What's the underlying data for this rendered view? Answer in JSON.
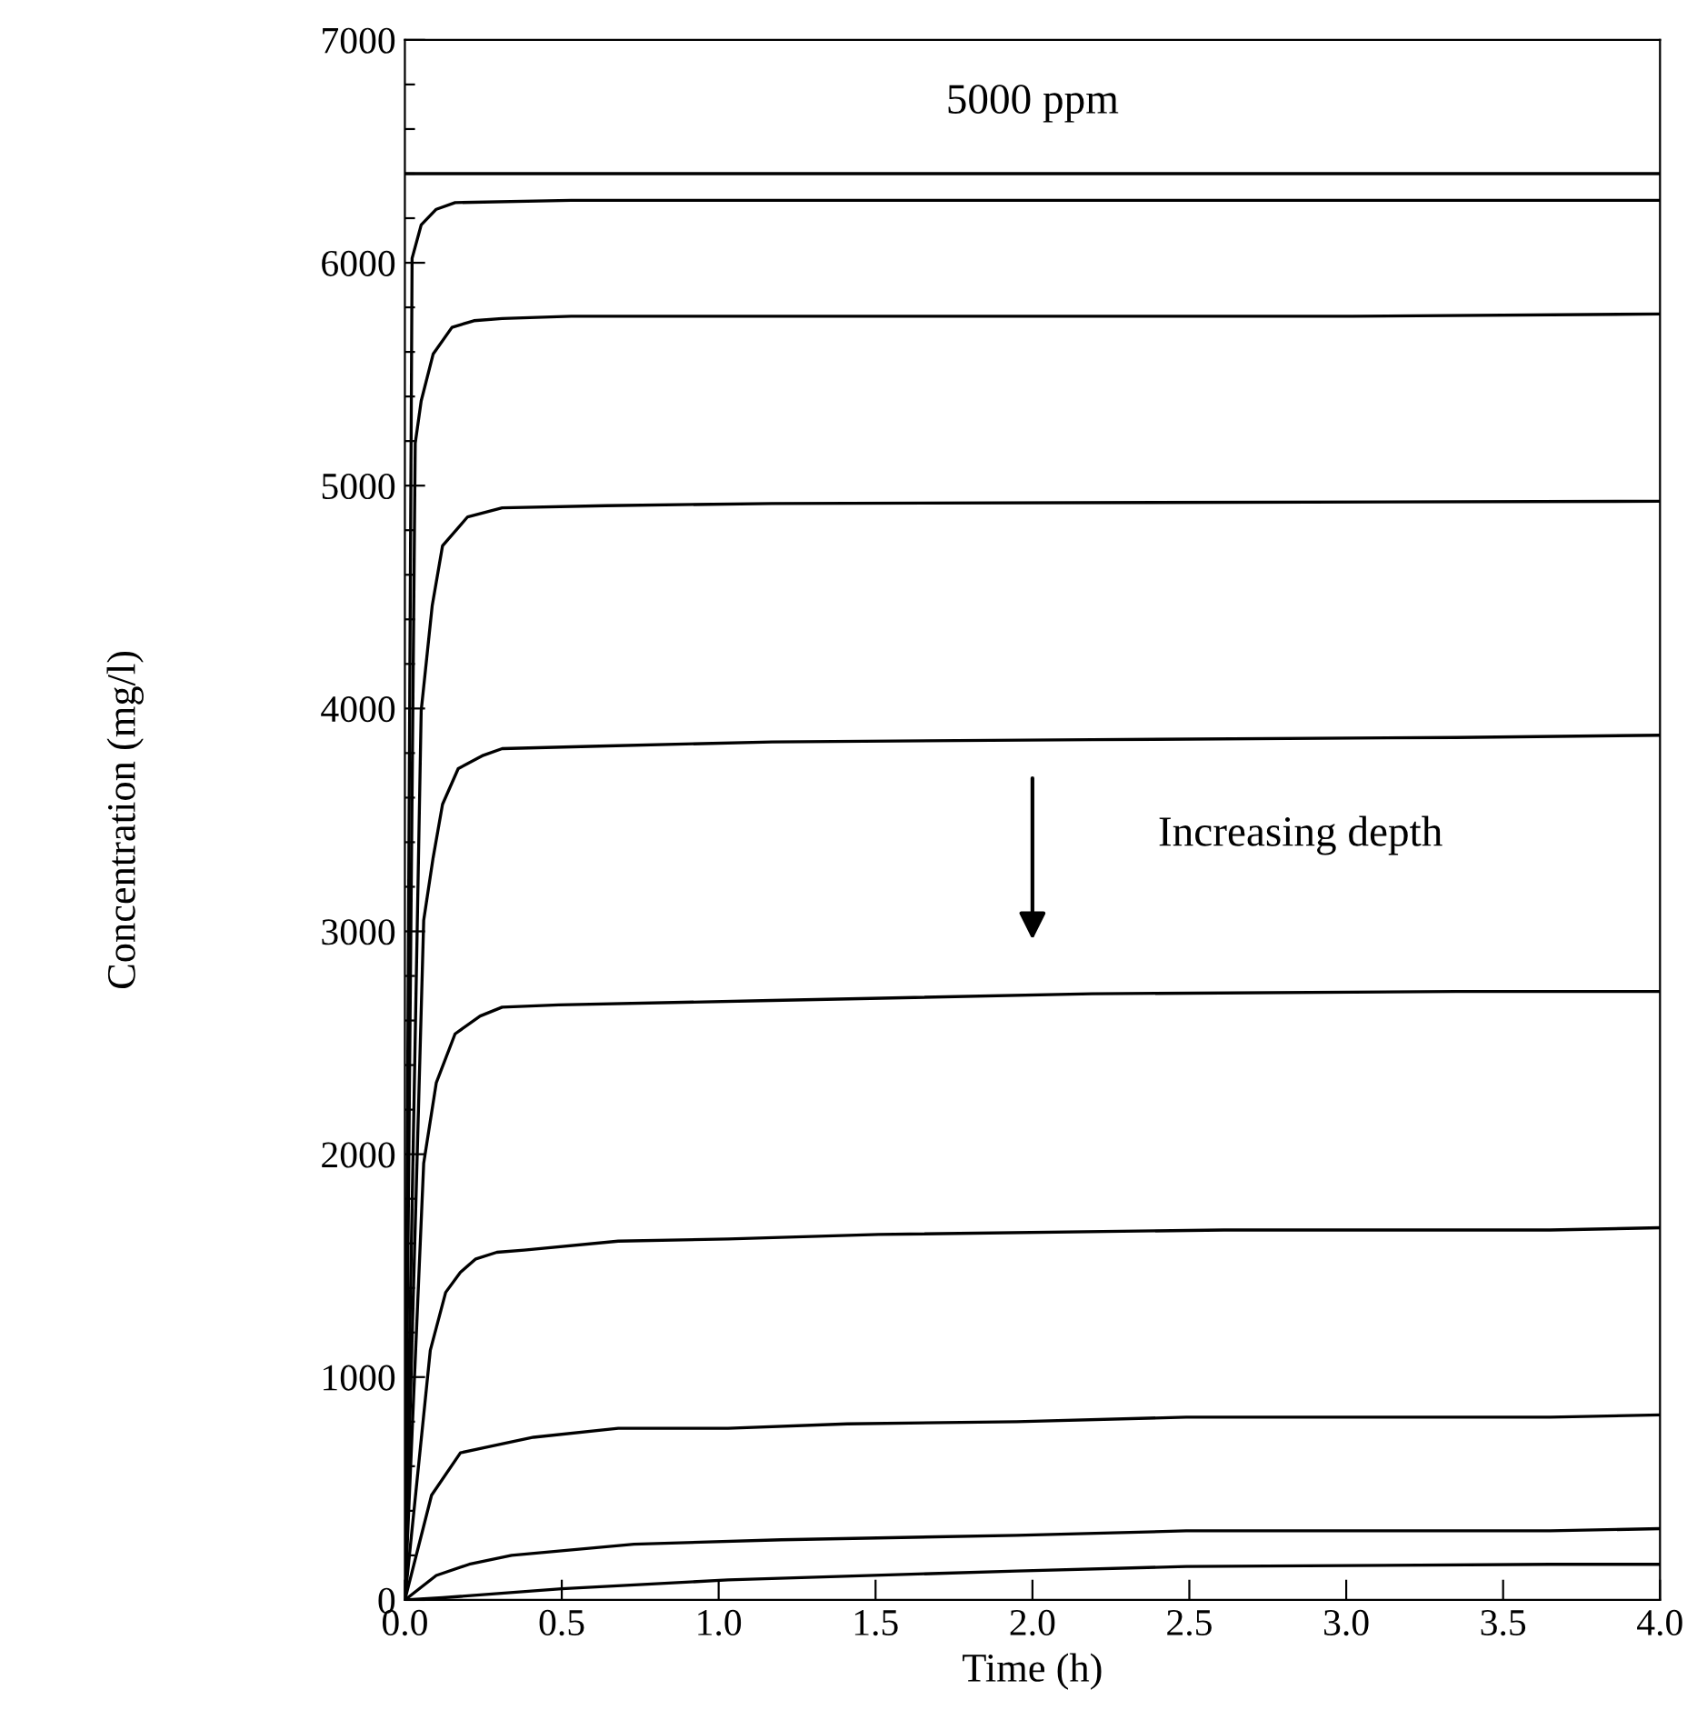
{
  "chart_data": {
    "type": "line",
    "xlabel": "Time (h)",
    "ylabel": "Concentration (mg/l)",
    "xlim": [
      0,
      4
    ],
    "ylim": [
      0,
      7000
    ],
    "xticks": [
      {
        "value": 0,
        "label": "0.0"
      },
      {
        "value": 0.5,
        "label": "0.5"
      },
      {
        "value": 1,
        "label": "1.0"
      },
      {
        "value": 1.5,
        "label": "1.5"
      },
      {
        "value": 2,
        "label": "2.0"
      },
      {
        "value": 2.5,
        "label": "2.5"
      },
      {
        "value": 3,
        "label": "3.0"
      },
      {
        "value": 3.5,
        "label": "3.5"
      },
      {
        "value": 4,
        "label": "4.0"
      }
    ],
    "yticks": [
      0,
      {
        "value": 200,
        "label": null
      },
      {
        "value": 400,
        "label": null
      },
      {
        "value": 600,
        "label": null
      },
      {
        "value": 800,
        "label": null
      },
      1000,
      {
        "value": 1200,
        "label": null
      },
      {
        "value": 1400,
        "label": null
      },
      {
        "value": 1600,
        "label": null
      },
      {
        "value": 1800,
        "label": null
      },
      2000,
      {
        "value": 2200,
        "label": null
      },
      {
        "value": 2400,
        "label": null
      },
      {
        "value": 2600,
        "label": null
      },
      {
        "value": 2800,
        "label": null
      },
      3000,
      {
        "value": 3200,
        "label": null
      },
      {
        "value": 3400,
        "label": null
      },
      {
        "value": 3600,
        "label": null
      },
      {
        "value": 3800,
        "label": null
      },
      4000,
      {
        "value": 4200,
        "label": null
      },
      {
        "value": 4400,
        "label": null
      },
      {
        "value": 4600,
        "label": null
      },
      {
        "value": 4800,
        "label": null
      },
      5000,
      {
        "value": 5200,
        "label": null
      },
      {
        "value": 5400,
        "label": null
      },
      {
        "value": 5600,
        "label": null
      },
      {
        "value": 5800,
        "label": null
      },
      6000,
      {
        "value": 6200,
        "label": null
      },
      {
        "value": 6400,
        "label": null
      },
      {
        "value": 6600,
        "label": null
      },
      {
        "value": 6800,
        "label": null
      },
      7000
    ],
    "grid": false,
    "legend": false,
    "marker": "none",
    "line_style": "solid",
    "ref_lines": [
      {
        "axis": "y",
        "value": 6400,
        "label": "5000 ppm",
        "color": "#000000",
        "line_style": "solid"
      }
    ],
    "annotations": [
      "Increasing depth"
    ],
    "series": [
      {
        "color": "#000000",
        "x": [
          0,
          0.023,
          0.052,
          0.1,
          0.16,
          0.53,
          1.17,
          3.02,
          4.0
        ],
        "values": [
          0,
          6020,
          6170,
          6240,
          6270,
          6280,
          6280,
          6280,
          6280
        ]
      },
      {
        "color": "#000000",
        "x": [
          0,
          0.033,
          0.052,
          0.09,
          0.15,
          0.22,
          0.31,
          0.53,
          1.17,
          3.02,
          4.0
        ],
        "values": [
          0,
          5190,
          5380,
          5590,
          5710,
          5740,
          5750,
          5760,
          5760,
          5760,
          5770
        ]
      },
      {
        "color": "#000000",
        "x": [
          0,
          0.052,
          0.087,
          0.12,
          0.2,
          0.31,
          0.64,
          1.17,
          4.0
        ],
        "values": [
          0,
          3990,
          4460,
          4730,
          4860,
          4900,
          4910,
          4920,
          4930
        ]
      },
      {
        "color": "#000000",
        "x": [
          0,
          0.06,
          0.09,
          0.12,
          0.17,
          0.25,
          0.31,
          0.59,
          1.17,
          2.19,
          3.35,
          4.0
        ],
        "values": [
          0,
          3050,
          3330,
          3570,
          3730,
          3790,
          3820,
          3830,
          3850,
          3860,
          3870,
          3880
        ]
      },
      {
        "color": "#000000",
        "x": [
          0,
          0.06,
          0.1,
          0.16,
          0.24,
          0.31,
          0.49,
          1.17,
          2.19,
          3.35,
          4.0
        ],
        "values": [
          0,
          1960,
          2320,
          2540,
          2620,
          2660,
          2670,
          2690,
          2720,
          2730,
          2730
        ]
      },
      {
        "color": "#000000",
        "x": [
          0,
          0.081,
          0.13,
          0.177,
          0.226,
          0.293,
          0.38,
          0.68,
          1.03,
          1.51,
          2.61,
          3.65,
          4.0
        ],
        "values": [
          0,
          1120,
          1380,
          1470,
          1530,
          1560,
          1570,
          1610,
          1620,
          1640,
          1660,
          1660,
          1670
        ]
      },
      {
        "color": "#000000",
        "x": [
          0,
          0.085,
          0.177,
          0.274,
          0.41,
          0.68,
          1.03,
          1.41,
          1.95,
          2.49,
          2.99,
          3.65,
          4.0
        ],
        "values": [
          0,
          470,
          660,
          690,
          730,
          770,
          770,
          790,
          800,
          820,
          820,
          820,
          830
        ]
      },
      {
        "color": "#000000",
        "x": [
          0,
          0.1,
          0.205,
          0.34,
          0.73,
          1.2,
          1.95,
          2.49,
          3.65,
          4.0
        ],
        "values": [
          0,
          110,
          160,
          200,
          250,
          270,
          290,
          310,
          310,
          320
        ]
      },
      {
        "color": "#000000",
        "x": [
          0,
          0.12,
          0.5,
          1.03,
          1.95,
          2.49,
          3.65,
          4.0
        ],
        "values": [
          0,
          10,
          50,
          90,
          130,
          150,
          160,
          160
        ]
      }
    ]
  }
}
